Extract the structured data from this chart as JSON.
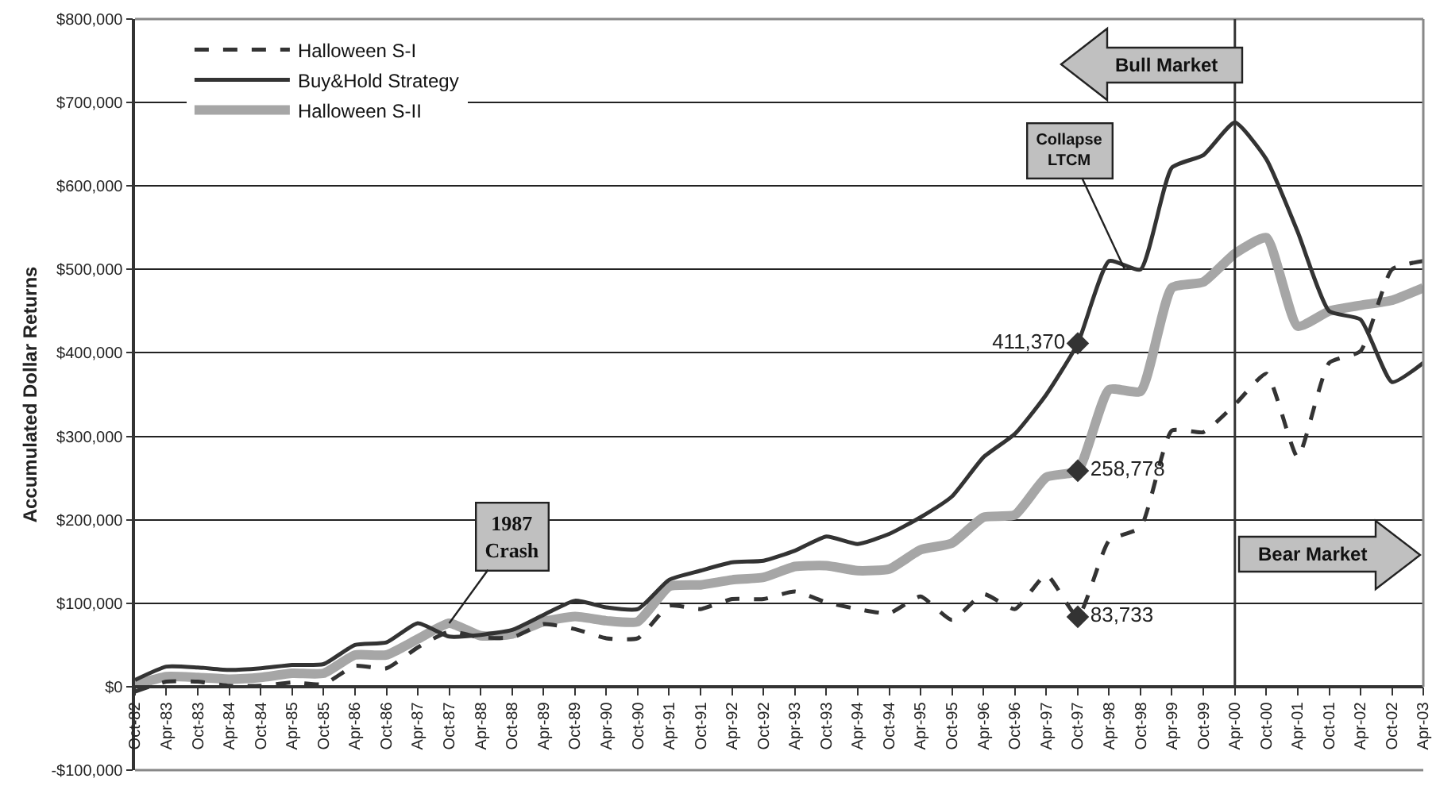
{
  "chart_data": {
    "type": "line",
    "ylabel": "Accumulated Dollar Returns",
    "x": [
      "1982-10",
      "1983-04",
      "1983-10",
      "1984-04",
      "1984-10",
      "1985-04",
      "1985-10",
      "1986-04",
      "1986-10",
      "1987-04",
      "1987-10",
      "1988-04",
      "1988-10",
      "1989-04",
      "1989-10",
      "1990-04",
      "1990-10",
      "1991-04",
      "1991-10",
      "1992-04",
      "1992-10",
      "1993-04",
      "1993-10",
      "1994-04",
      "1994-10",
      "1995-04",
      "1995-10",
      "1996-04",
      "1996-10",
      "1997-04",
      "1997-10",
      "1998-04",
      "1998-10",
      "1999-04",
      "1999-10",
      "2000-04",
      "2000-10",
      "2001-04",
      "2001-10",
      "2002-04",
      "2002-10",
      "2003-04"
    ],
    "series": [
      {
        "name": "Halloween S-I",
        "color": "#333333",
        "line_style": "dashed",
        "values": [
          -6000,
          6000,
          6000,
          1000,
          1000,
          5000,
          3000,
          25000,
          22000,
          47000,
          66000,
          59000,
          59000,
          75000,
          69000,
          58000,
          58000,
          97000,
          93000,
          105000,
          105000,
          114000,
          101000,
          93000,
          88000,
          108000,
          80000,
          111000,
          93000,
          134000,
          83733,
          175000,
          191000,
          307000,
          305000,
          338000,
          375000,
          275000,
          388000,
          402000,
          500000,
          510000
        ]
      },
      {
        "name": "Buy&Hold Strategy",
        "color": "#333333",
        "line_style": "solid",
        "values": [
          8000,
          24000,
          23000,
          20000,
          22000,
          26000,
          27000,
          50000,
          53000,
          76000,
          60000,
          62000,
          68000,
          86000,
          103000,
          95000,
          93000,
          128000,
          139000,
          149000,
          151000,
          163000,
          180000,
          171000,
          183000,
          203000,
          228000,
          275000,
          303000,
          350000,
          411370,
          510000,
          500000,
          622000,
          637000,
          676000,
          632000,
          545000,
          450000,
          440000,
          365000,
          388000
        ]
      },
      {
        "name": "Halloween S-II",
        "color": "#a6a6a6",
        "line_style": "solid",
        "values": [
          2000,
          12000,
          11000,
          9000,
          11000,
          16000,
          16000,
          38000,
          38000,
          57000,
          76000,
          61000,
          63000,
          78000,
          84000,
          79000,
          78000,
          120000,
          122000,
          128000,
          131000,
          144000,
          145000,
          139000,
          141000,
          164000,
          172000,
          203000,
          206000,
          251000,
          258778,
          356000,
          354000,
          478000,
          485000,
          519000,
          538000,
          432000,
          450000,
          457000,
          463000,
          478000
        ]
      },
      {
        "type": "scatter",
        "marker": "diamond",
        "color": "#333333",
        "x": [
          "1997-10",
          "1997-10",
          "1997-10"
        ],
        "values": [
          411370,
          258778,
          83733
        ],
        "value_labels": [
          "411,370",
          "258,778",
          "83,733"
        ]
      }
    ],
    "xlim": [
      "1982-10",
      "2003-04"
    ],
    "xticks": [
      {
        "value": "1982-10",
        "label": "Oct-82"
      },
      {
        "value": "1983-04",
        "label": "Apr-83"
      },
      {
        "value": "1983-10",
        "label": "Oct-83"
      },
      {
        "value": "1984-04",
        "label": "Apr-84"
      },
      {
        "value": "1984-10",
        "label": "Oct-84"
      },
      {
        "value": "1985-04",
        "label": "Apr-85"
      },
      {
        "value": "1985-10",
        "label": "Oct-85"
      },
      {
        "value": "1986-04",
        "label": "Apr-86"
      },
      {
        "value": "1986-10",
        "label": "Oct-86"
      },
      {
        "value": "1987-04",
        "label": "Apr-87"
      },
      {
        "value": "1987-10",
        "label": "Oct-87"
      },
      {
        "value": "1988-04",
        "label": "Apr-88"
      },
      {
        "value": "1988-10",
        "label": "Oct-88"
      },
      {
        "value": "1989-04",
        "label": "Apr-89"
      },
      {
        "value": "1989-10",
        "label": "Oct-89"
      },
      {
        "value": "1990-04",
        "label": "Apr-90"
      },
      {
        "value": "1990-10",
        "label": "Oct-90"
      },
      {
        "value": "1991-04",
        "label": "Apr-91"
      },
      {
        "value": "1991-10",
        "label": "Oct-91"
      },
      {
        "value": "1992-04",
        "label": "Apr-92"
      },
      {
        "value": "1992-10",
        "label": "Oct-92"
      },
      {
        "value": "1993-04",
        "label": "Apr-93"
      },
      {
        "value": "1993-10",
        "label": "Oct-93"
      },
      {
        "value": "1994-04",
        "label": "Apr-94"
      },
      {
        "value": "1994-10",
        "label": "Oct-94"
      },
      {
        "value": "1995-04",
        "label": "Apr-95"
      },
      {
        "value": "1995-10",
        "label": "Oct-95"
      },
      {
        "value": "1996-04",
        "label": "Apr-96"
      },
      {
        "value": "1996-10",
        "label": "Oct-96"
      },
      {
        "value": "1997-04",
        "label": "Apr-97"
      },
      {
        "value": "1997-10",
        "label": "Oct-97"
      },
      {
        "value": "1998-04",
        "label": "Apr-98"
      },
      {
        "value": "1998-10",
        "label": "Oct-98"
      },
      {
        "value": "1999-04",
        "label": "Apr-99"
      },
      {
        "value": "1999-10",
        "label": "Oct-99"
      },
      {
        "value": "2000-04",
        "label": "Apr-00"
      },
      {
        "value": "2000-10",
        "label": "Oct-00"
      },
      {
        "value": "2001-04",
        "label": "Apr-01"
      },
      {
        "value": "2001-10",
        "label": "Oct-01"
      },
      {
        "value": "2002-04",
        "label": "Apr-02"
      },
      {
        "value": "2002-10",
        "label": "Oct-02"
      },
      {
        "value": "2003-04",
        "label": "Apr-03"
      }
    ],
    "ylim": [
      -100000,
      800000
    ],
    "yticks": [
      {
        "value": -100000,
        "label": "-$100,000"
      },
      {
        "value": 0,
        "label": "$0"
      },
      {
        "value": 100000,
        "label": "$100,000"
      },
      {
        "value": 200000,
        "label": "$200,000"
      },
      {
        "value": 300000,
        "label": "$300,000"
      },
      {
        "value": 400000,
        "label": "$400,000"
      },
      {
        "value": 500000,
        "label": "$500,000"
      },
      {
        "value": 600000,
        "label": "$600,000"
      },
      {
        "value": 700000,
        "label": "$700,000"
      },
      {
        "value": 800000,
        "label": "$800,000"
      }
    ],
    "grid": "y",
    "legend": "top left",
    "ref_lines": [
      {
        "axis": "x",
        "value": "2000-04",
        "color": "#333333"
      }
    ],
    "annotations": [
      "Bull Market",
      "Bear Market",
      {
        "text": "1987\nCrash",
        "x": "1987-10",
        "y": 76000
      },
      {
        "text": "Collapse\nLTCM",
        "x": "1998-07",
        "y": 500000
      }
    ]
  }
}
